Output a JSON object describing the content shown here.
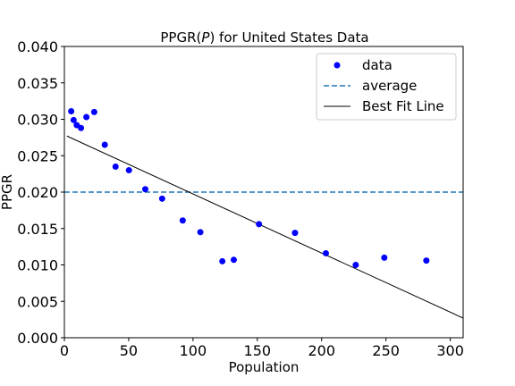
{
  "chart_data": {
    "type": "scatter",
    "title": "PPGR(P) for United States Data",
    "title_parts": {
      "pre": "PPGR(",
      "italic": "P",
      "post": ") for United States Data"
    },
    "xlabel": "Population",
    "ylabel": "PPGR",
    "xlim": [
      0,
      310
    ],
    "ylim": [
      0.0,
      0.04
    ],
    "xticks": [
      0,
      50,
      100,
      150,
      200,
      250,
      300
    ],
    "xtick_labels": [
      "0",
      "50",
      "100",
      "150",
      "200",
      "250",
      "300"
    ],
    "yticks": [
      0.0,
      0.005,
      0.01,
      0.015,
      0.02,
      0.025,
      0.03,
      0.035,
      0.04
    ],
    "ytick_labels": [
      "0.000",
      "0.005",
      "0.010",
      "0.015",
      "0.020",
      "0.025",
      "0.030",
      "0.035",
      "0.040"
    ],
    "grid": false,
    "legend_position": "top-right",
    "series": [
      {
        "name": "data",
        "kind": "scatter",
        "color": "#0000ff",
        "x": [
          5.3,
          7.2,
          9.6,
          12.9,
          17.1,
          23.2,
          31.4,
          39.8,
          50.2,
          62.9,
          76.0,
          92.0,
          105.7,
          122.8,
          131.7,
          151.3,
          179.3,
          203.3,
          226.5,
          248.7,
          281.4
        ],
        "y": [
          0.0311,
          0.0299,
          0.0292,
          0.0288,
          0.0303,
          0.031,
          0.0265,
          0.0235,
          0.023,
          0.0204,
          0.0191,
          0.0161,
          0.0145,
          0.0105,
          0.0107,
          0.0156,
          0.0144,
          0.0116,
          0.01,
          0.011,
          0.0106
        ]
      },
      {
        "name": "average",
        "kind": "hline",
        "color": "#1f77b4",
        "dash": "dashed",
        "y": 0.02
      },
      {
        "name": "Best Fit Line",
        "kind": "line",
        "color": "#000000",
        "x": [
          2,
          310
        ],
        "y": [
          0.0277,
          0.0027
        ]
      }
    ]
  }
}
